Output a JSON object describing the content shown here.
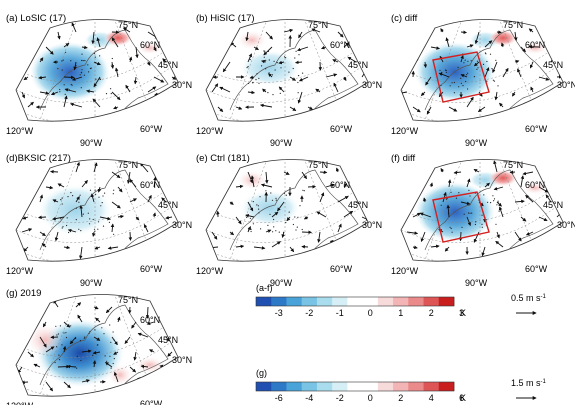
{
  "panels": [
    {
      "label": "(a) LoSIC",
      "count": "(17)",
      "kind": "cold"
    },
    {
      "label": "(b) HiSIC",
      "count": "(17)",
      "kind": "neutral"
    },
    {
      "label": "(c) diff",
      "count": "",
      "kind": "cold-box"
    },
    {
      "label": "(d)BKSIC",
      "count": "(217)",
      "kind": "weak"
    },
    {
      "label": "(e) Ctrl",
      "count": "(181)",
      "kind": "neutral"
    },
    {
      "label": "(f) diff",
      "count": "",
      "kind": "cold-box"
    },
    {
      "label": "(g) 2019",
      "count": "",
      "kind": "cold-strong"
    }
  ],
  "lat_labels": [
    "75°N",
    "60°N",
    "45°N",
    "30°N"
  ],
  "lon_labels": [
    "120°W",
    "90°W",
    "60°W"
  ],
  "colorbars": [
    {
      "label": "(a-f)",
      "ticks": [
        "-3",
        "-2",
        "-1",
        "0",
        "1",
        "2",
        "3"
      ],
      "unit": "K",
      "ref_vector": "0.5 m s",
      "ref_exp": "-1"
    },
    {
      "label": "(g)",
      "ticks": [
        "-6",
        "-4",
        "-2",
        "0",
        "2",
        "4",
        "6"
      ],
      "unit": "K",
      "ref_vector": "1.5 m s",
      "ref_exp": "-1"
    }
  ],
  "colors": {
    "scale": [
      "#1f4fb0",
      "#2e78c8",
      "#4aa3d8",
      "#79c3e4",
      "#a9dcec",
      "#d6eef5",
      "#ffffff",
      "#ffffff",
      "#f7dada",
      "#f2b4b4",
      "#ea8a8a",
      "#de5555",
      "#c81e1e"
    ],
    "box": "#d42020",
    "grid": "#888888"
  }
}
